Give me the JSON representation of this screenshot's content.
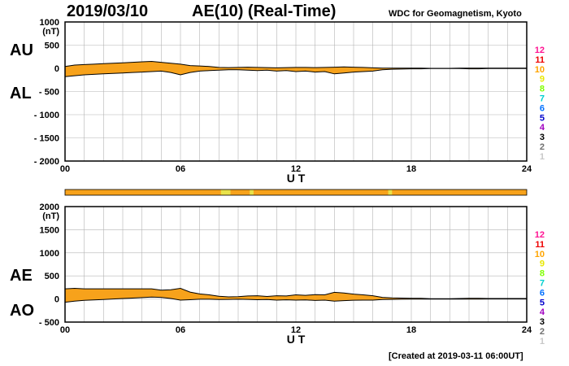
{
  "header": {
    "date": "2019/03/10",
    "title": "AE(10) (Real-Time)",
    "source": "WDC for Geomagnetism, Kyoto",
    "created": "[Created at 2019-03-11 06:00UT]"
  },
  "colors": {
    "fill": "#f7a21b",
    "line": "#000000",
    "grid": "#b4b4b4",
    "bar": "#f7a21b",
    "bar_highlight": "#e8e24a"
  },
  "legend_scale": {
    "labels": [
      "12",
      "11",
      "10",
      "9",
      "8",
      "7",
      "6",
      "5",
      "4",
      "3",
      "2",
      "1"
    ],
    "colors": [
      "#ff1493",
      "#ee0000",
      "#ffa500",
      "#e8e800",
      "#7fff00",
      "#00d0d0",
      "#0070ff",
      "#0000cc",
      "#a000c0",
      "#000000",
      "#707070",
      "#c8c8c8"
    ]
  },
  "chart_data": [
    {
      "type": "area",
      "panel": "AU/AL",
      "left_labels": [
        "AU",
        "AL"
      ],
      "unit_label": "(nT)",
      "xlabel": "U T",
      "xlim": [
        0,
        24
      ],
      "xticks": [
        0,
        6,
        12,
        18,
        24
      ],
      "xtick_labels": [
        "00",
        "06",
        "12",
        "18",
        "24"
      ],
      "ylim": [
        -2000,
        1000
      ],
      "yticks": [
        1000,
        500,
        0,
        -500,
        -1000,
        -1500,
        -2000
      ],
      "ytick_labels": [
        "1000",
        "500",
        "0",
        "- 500",
        "- 1000",
        "- 1500",
        "- 2000"
      ],
      "grid": true,
      "x": [
        0,
        0.5,
        1,
        1.5,
        2,
        2.5,
        3,
        3.5,
        4,
        4.5,
        5,
        5.5,
        6,
        6.5,
        7,
        7.5,
        8,
        8.5,
        9,
        9.5,
        10,
        10.5,
        11,
        11.5,
        12,
        12.5,
        13,
        13.5,
        14,
        14.5,
        15,
        15.5,
        16,
        16.5,
        17,
        17.5,
        18,
        18.5,
        19,
        19.5,
        20,
        20.5,
        21,
        21.5,
        22,
        22.5,
        23,
        23.5,
        24
      ],
      "series": [
        {
          "name": "AU",
          "values": [
            40,
            70,
            80,
            90,
            100,
            110,
            120,
            130,
            140,
            150,
            130,
            110,
            90,
            60,
            50,
            40,
            20,
            15,
            20,
            25,
            20,
            15,
            10,
            15,
            20,
            20,
            15,
            20,
            25,
            30,
            25,
            20,
            10,
            5,
            5,
            5,
            5,
            5,
            0,
            0,
            0,
            5,
            5,
            5,
            5,
            5,
            5,
            5,
            5
          ]
        },
        {
          "name": "AL",
          "values": [
            -180,
            -160,
            -140,
            -130,
            -120,
            -110,
            -100,
            -90,
            -80,
            -70,
            -60,
            -90,
            -140,
            -90,
            -60,
            -50,
            -40,
            -30,
            -30,
            -40,
            -50,
            -40,
            -60,
            -50,
            -70,
            -60,
            -80,
            -70,
            -120,
            -100,
            -80,
            -70,
            -60,
            -30,
            -20,
            -15,
            -10,
            -10,
            -5,
            -5,
            -5,
            -5,
            -10,
            -10,
            -5,
            -5,
            -5,
            -5,
            -5
          ]
        }
      ]
    },
    {
      "type": "area",
      "panel": "AE/AO",
      "left_labels": [
        "AE",
        "AO"
      ],
      "unit_label": "(nT)",
      "xlabel": "U T",
      "xlim": [
        0,
        24
      ],
      "xticks": [
        0,
        6,
        12,
        18,
        24
      ],
      "xtick_labels": [
        "00",
        "06",
        "12",
        "18",
        "24"
      ],
      "ylim": [
        -500,
        2000
      ],
      "yticks": [
        2000,
        1500,
        1000,
        500,
        0,
        -500
      ],
      "ytick_labels": [
        "2000",
        "1500",
        "1000",
        "500",
        "0",
        "- 500"
      ],
      "grid": true,
      "x": [
        0,
        0.5,
        1,
        1.5,
        2,
        2.5,
        3,
        3.5,
        4,
        4.5,
        5,
        5.5,
        6,
        6.5,
        7,
        7.5,
        8,
        8.5,
        9,
        9.5,
        10,
        10.5,
        11,
        11.5,
        12,
        12.5,
        13,
        13.5,
        14,
        14.5,
        15,
        15.5,
        16,
        16.5,
        17,
        17.5,
        18,
        18.5,
        19,
        19.5,
        20,
        20.5,
        21,
        21.5,
        22,
        22.5,
        23,
        23.5,
        24
      ],
      "series": [
        {
          "name": "AE",
          "values": [
            220,
            230,
            220,
            220,
            220,
            220,
            220,
            220,
            220,
            220,
            190,
            200,
            230,
            150,
            110,
            90,
            60,
            45,
            50,
            65,
            70,
            55,
            70,
            65,
            90,
            80,
            95,
            90,
            145,
            130,
            105,
            90,
            70,
            35,
            25,
            20,
            15,
            15,
            5,
            5,
            5,
            10,
            15,
            15,
            10,
            10,
            10,
            10,
            10
          ]
        },
        {
          "name": "AO",
          "values": [
            -70,
            -45,
            -30,
            -20,
            -10,
            0,
            10,
            20,
            30,
            40,
            35,
            10,
            -25,
            -15,
            -5,
            -5,
            -10,
            -8,
            -5,
            -8,
            -15,
            -12,
            -25,
            -18,
            -25,
            -20,
            -32,
            -25,
            -47,
            -35,
            -27,
            -25,
            -25,
            -12,
            -8,
            -5,
            -3,
            -3,
            -3,
            -3,
            -3,
            0,
            -3,
            -3,
            0,
            0,
            0,
            0,
            0
          ]
        }
      ],
      "status_bar": {
        "highlight_hours": [
          [
            8.1,
            8.6
          ],
          [
            9.6,
            9.8
          ],
          [
            16.8,
            17.0
          ]
        ]
      }
    }
  ]
}
